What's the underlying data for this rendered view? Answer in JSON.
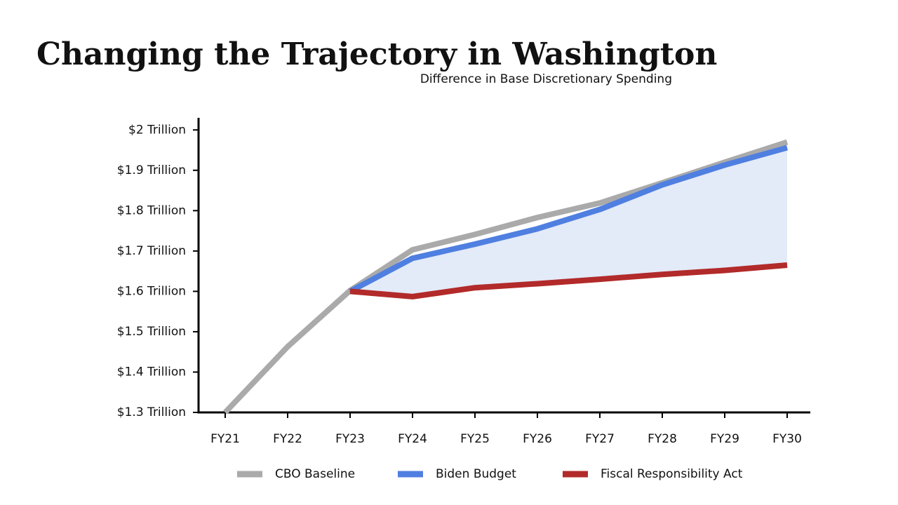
{
  "chart_data": {
    "type": "line",
    "title": "Changing the Trajectory in Washington",
    "subtitle": "Difference in Base Discretionary Spending",
    "categories": [
      "FY21",
      "FY22",
      "FY23",
      "FY24",
      "FY25",
      "FY26",
      "FY27",
      "FY28",
      "FY29",
      "FY30"
    ],
    "series": [
      {
        "name": "CBO Baseline",
        "color": "#aaaaaa",
        "values": [
          1.3,
          1.463,
          1.602,
          1.703,
          1.741,
          1.783,
          1.819,
          1.869,
          1.92,
          1.97
        ]
      },
      {
        "name": "Biden Budget",
        "color": "#4f7fe0",
        "values": [
          null,
          null,
          1.6,
          1.682,
          1.717,
          1.755,
          1.803,
          1.864,
          1.913,
          1.956
        ]
      },
      {
        "name": "Fiscal Responsibility Act",
        "color": "#b22a2a",
        "values": [
          null,
          null,
          1.6,
          1.587,
          1.609,
          1.619,
          1.63,
          1.642,
          1.652,
          1.665
        ]
      }
    ],
    "fill_between_color": "#e3eaf8",
    "ylim": [
      1.3,
      2.03
    ],
    "yticks": [
      {
        "value": 1.3,
        "label": "$1.3 Trillion"
      },
      {
        "value": 1.4,
        "label": "$1.4 Trillion"
      },
      {
        "value": 1.5,
        "label": "$1.5 Trillion"
      },
      {
        "value": 1.6,
        "label": "$1.6 Trillion"
      },
      {
        "value": 1.7,
        "label": "$1.7 Trillion"
      },
      {
        "value": 1.8,
        "label": "$1.8 Trillion"
      },
      {
        "value": 1.9,
        "label": "$1.9 Trillion"
      },
      {
        "value": 2,
        "label": "$2 Trillion"
      }
    ],
    "grid": false,
    "legend": "bottom"
  }
}
